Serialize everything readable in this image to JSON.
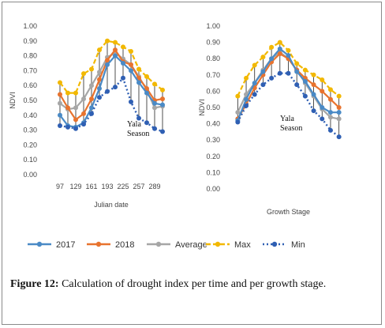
{
  "chart_data": [
    {
      "type": "line",
      "title": "",
      "xlabel": "Julian date",
      "ylabel": "NDVI",
      "annotation": [
        "Yala",
        "Season"
      ],
      "ylim": [
        0,
        1
      ],
      "yticks": [
        "0.00",
        "0.10",
        "0.20",
        "0.30",
        "0.40",
        "0.50",
        "0.60",
        "0.70",
        "0.80",
        "0.90",
        "1.00"
      ],
      "x": [
        97,
        113,
        129,
        145,
        161,
        177,
        193,
        209,
        225,
        241,
        257,
        273,
        289,
        305
      ],
      "xtick_labels": [
        "97",
        "129",
        "161",
        "193",
        "225",
        "257",
        "289"
      ],
      "xtick_values": [
        97,
        129,
        161,
        193,
        225,
        257,
        289
      ],
      "xlim": [
        89,
        313
      ],
      "series": [
        {
          "name": "2017",
          "values": [
            0.4,
            0.33,
            0.32,
            0.35,
            0.45,
            0.58,
            0.74,
            0.8,
            0.75,
            0.7,
            0.62,
            0.55,
            0.48,
            0.47
          ]
        },
        {
          "name": "2018",
          "values": [
            0.54,
            0.45,
            0.37,
            0.41,
            0.51,
            0.64,
            0.77,
            0.84,
            0.76,
            0.74,
            0.65,
            0.58,
            0.5,
            0.51
          ]
        },
        {
          "name": "Average",
          "values": [
            0.48,
            0.44,
            0.45,
            0.51,
            0.6,
            0.69,
            0.79,
            0.82,
            0.78,
            0.74,
            0.66,
            0.57,
            0.45,
            0.46
          ]
        },
        {
          "name": "Max",
          "values": [
            0.62,
            0.55,
            0.55,
            0.68,
            0.71,
            0.84,
            0.9,
            0.89,
            0.86,
            0.83,
            0.71,
            0.66,
            0.61,
            0.57
          ]
        },
        {
          "name": "Min",
          "values": [
            0.33,
            0.32,
            0.31,
            0.34,
            0.41,
            0.52,
            0.56,
            0.59,
            0.65,
            0.49,
            0.38,
            0.35,
            0.31,
            0.29
          ]
        }
      ]
    },
    {
      "type": "line",
      "title": "",
      "xlabel": "Growth Stage",
      "ylabel": "NDVI",
      "annotation": [
        "Yala",
        "Season"
      ],
      "ylim": [
        0,
        1
      ],
      "yticks": [
        "0.00",
        "0.10",
        "0.20",
        "0.30",
        "0.40",
        "0.50",
        "0.60",
        "0.70",
        "0.80",
        "0.90",
        "1.00"
      ],
      "x": [
        1,
        2,
        3,
        4,
        5,
        6,
        7,
        8,
        9,
        10,
        11,
        12,
        13
      ],
      "xtick_labels": [],
      "xtick_values": [],
      "xlim": [
        0.5,
        13.5
      ],
      "series": [
        {
          "name": "2017",
          "values": [
            0.42,
            0.55,
            0.65,
            0.72,
            0.8,
            0.86,
            0.82,
            0.72,
            0.66,
            0.58,
            0.5,
            0.47,
            0.47
          ]
        },
        {
          "name": "2018",
          "values": [
            0.43,
            0.52,
            0.62,
            0.7,
            0.78,
            0.83,
            0.8,
            0.73,
            0.68,
            0.64,
            0.6,
            0.55,
            0.5
          ]
        },
        {
          "name": "Average",
          "values": [
            0.47,
            0.58,
            0.65,
            0.73,
            0.8,
            0.84,
            0.8,
            0.73,
            0.65,
            0.57,
            0.49,
            0.44,
            0.43
          ]
        },
        {
          "name": "Max",
          "values": [
            0.57,
            0.68,
            0.76,
            0.81,
            0.87,
            0.9,
            0.85,
            0.77,
            0.73,
            0.7,
            0.67,
            0.61,
            0.57
          ]
        },
        {
          "name": "Min",
          "values": [
            0.41,
            0.51,
            0.58,
            0.64,
            0.68,
            0.71,
            0.71,
            0.64,
            0.57,
            0.48,
            0.43,
            0.36,
            0.32
          ]
        }
      ]
    }
  ],
  "legend": [
    {
      "name": "2017",
      "color": "#4a8ac6",
      "style": "solid",
      "marker": "circle"
    },
    {
      "name": "2018",
      "color": "#e8732e",
      "style": "solid",
      "marker": "circle"
    },
    {
      "name": "Average",
      "color": "#a6a6a6",
      "style": "solid",
      "marker": "circle"
    },
    {
      "name": "Max",
      "color": "#f2b800",
      "style": "dash",
      "marker": "circle"
    },
    {
      "name": "Min",
      "color": "#2f5fb3",
      "style": "dot",
      "marker": "circle"
    }
  ],
  "caption": {
    "label": "Figure 12:",
    "text": " Calculation of drought index per time and per growth stage."
  }
}
